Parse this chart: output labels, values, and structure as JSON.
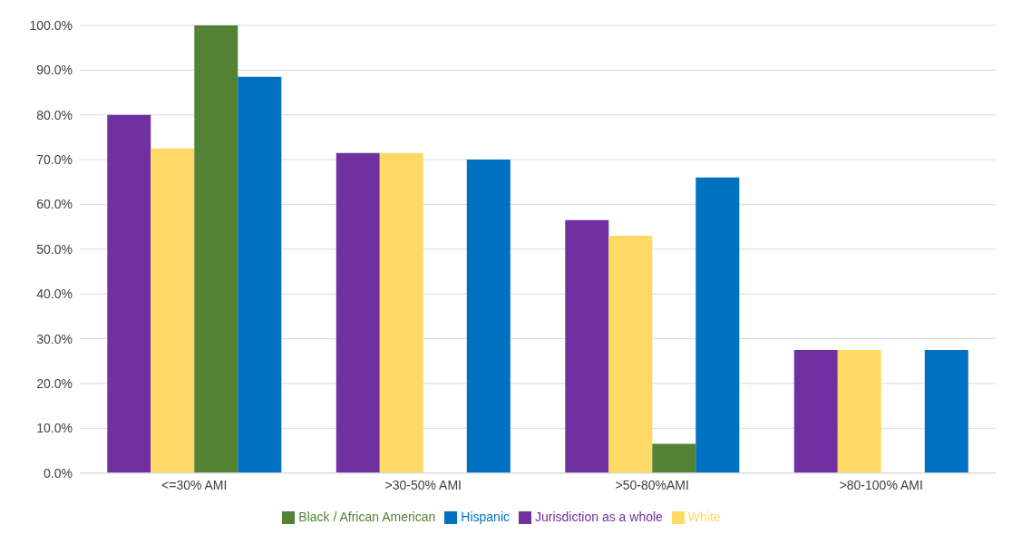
{
  "chart_data": {
    "type": "bar",
    "categories": [
      "<=30% AMI",
      ">30-50% AMI",
      ">50-80%AMI",
      ">80-100% AMI"
    ],
    "series": [
      {
        "name": "Jurisdiction as a whole",
        "color": "#7030a0",
        "values": [
          80,
          71.5,
          56.5,
          27.5
        ]
      },
      {
        "name": "White",
        "color": "#ffd966",
        "values": [
          72.5,
          71.5,
          53,
          27.5
        ]
      },
      {
        "name": "Black / African American",
        "color": "#548235",
        "values": [
          100,
          0,
          6.5,
          0
        ]
      },
      {
        "name": "Hispanic",
        "color": "#0070c0",
        "values": [
          88.5,
          70,
          66,
          27.5
        ]
      }
    ],
    "ylim": [
      0,
      100
    ],
    "yticks": [
      {
        "value": 0,
        "label": "0.0%"
      },
      {
        "value": 10,
        "label": "10.0%"
      },
      {
        "value": 20,
        "label": "20.0%"
      },
      {
        "value": 30,
        "label": "30.0%"
      },
      {
        "value": 40,
        "label": "40.0%"
      },
      {
        "value": 50,
        "label": "50.0%"
      },
      {
        "value": 60,
        "label": "60.0%"
      },
      {
        "value": 70,
        "label": "70.0%"
      },
      {
        "value": 80,
        "label": "80.0%"
      },
      {
        "value": 90,
        "label": "90.0%"
      },
      {
        "value": 100,
        "label": "100.0%"
      }
    ],
    "grid": "y",
    "legend": "bottom"
  }
}
